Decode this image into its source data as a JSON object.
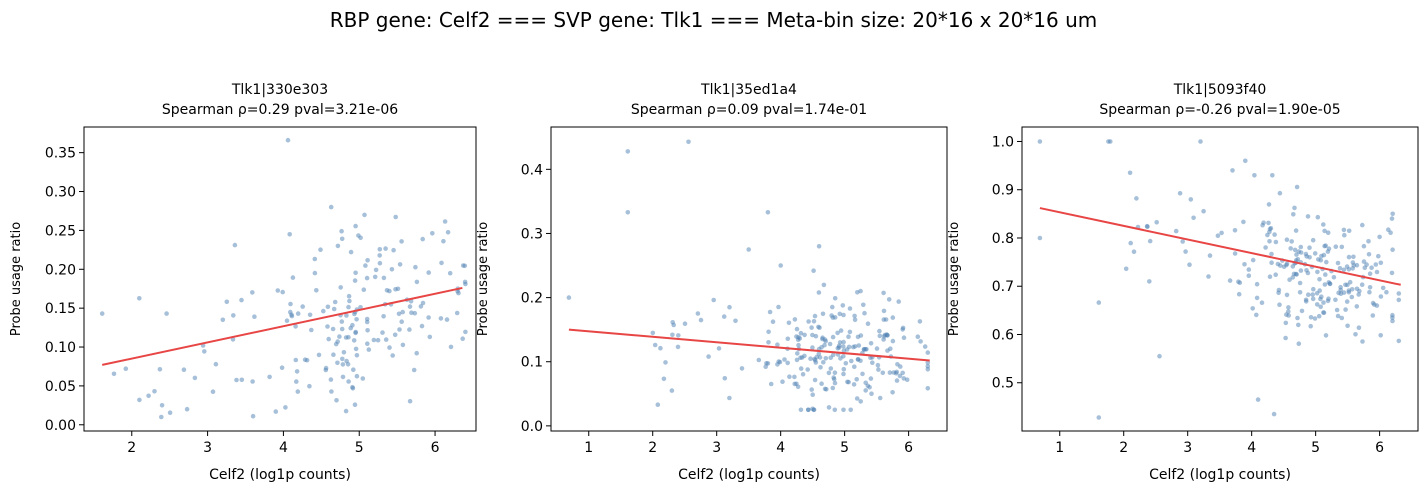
{
  "figure": {
    "suptitle": "RBP gene: Celf2 === SVP gene: Tlk1 === Meta-bin size: 20*16 x 20*16 um"
  },
  "style": {
    "point_color": "#4f81b4",
    "line_color": "#e84545"
  },
  "chart_data": [
    {
      "type": "scatter",
      "title": "Tlk1|330e303",
      "subtitle": "Spearman ρ=0.29 pval=3.21e-06",
      "xlabel": "Celf2 (log1p counts)",
      "ylabel": "Probe usage ratio",
      "xlim": [
        1.37,
        6.54
      ],
      "ylim": [
        -0.008,
        0.383
      ],
      "xticks": [
        2,
        3,
        4,
        5,
        6
      ],
      "xtick_labels": [
        "2",
        "3",
        "4",
        "5",
        "6"
      ],
      "yticks": [
        0,
        0.05,
        0.1,
        0.15,
        0.2,
        0.25,
        0.3,
        0.35
      ],
      "ytick_labels": [
        "0.00",
        "0.05",
        "0.10",
        "0.15",
        "0.20",
        "0.25",
        "0.30",
        "0.35"
      ],
      "fit_line": {
        "x": [
          1.61,
          6.36
        ],
        "y": [
          0.077,
          0.176
        ]
      },
      "seed": 11,
      "n_points": 190,
      "cloud": {
        "x_min": 1.6,
        "x_max": 6.4,
        "x_mode": 5.1,
        "y_center": 0.135,
        "y_sd": 0.055,
        "y_min": 0.01,
        "y_max": 0.28,
        "slope": 0.021,
        "x_ref": 4.9
      },
      "points": [
        [
          4.06,
          0.366
        ],
        [
          1.61,
          0.143
        ],
        [
          2.46,
          0.143
        ],
        [
          2.1,
          0.032
        ],
        [
          2.3,
          0.043
        ],
        [
          2.4,
          0.025
        ],
        [
          2.73,
          0.02
        ],
        [
          3.6,
          0.011
        ],
        [
          3.9,
          0.017
        ],
        [
          6.3,
          0.175
        ],
        [
          6.2,
          0.195
        ],
        [
          4.63,
          0.28
        ],
        [
          5.07,
          0.27
        ]
      ]
    },
    {
      "type": "scatter",
      "title": "Tlk1|35ed1a4",
      "subtitle": "Spearman ρ=0.09 pval=1.74e-01",
      "xlabel": "Celf2 (log1p counts)",
      "ylabel": "Probe usage ratio",
      "xlim": [
        0.41,
        6.6
      ],
      "ylim": [
        -0.008,
        0.466
      ],
      "xticks": [
        1,
        2,
        3,
        4,
        5,
        6
      ],
      "xtick_labels": [
        "1",
        "2",
        "3",
        "4",
        "5",
        "6"
      ],
      "yticks": [
        0,
        0.1,
        0.2,
        0.3,
        0.4
      ],
      "ytick_labels": [
        "0.0",
        "0.1",
        "0.2",
        "0.3",
        "0.4"
      ],
      "fit_line": {
        "x": [
          0.69,
          6.33
        ],
        "y": [
          0.15,
          0.102
        ]
      },
      "seed": 23,
      "n_points": 235,
      "cloud": {
        "x_min": 2.0,
        "x_max": 6.3,
        "x_mode": 5.0,
        "y_center": 0.115,
        "y_sd": 0.04,
        "y_min": 0.025,
        "y_max": 0.25,
        "slope": -0.004,
        "x_ref": 4.9
      },
      "points": [
        [
          0.69,
          0.2
        ],
        [
          1.61,
          0.428
        ],
        [
          1.61,
          0.333
        ],
        [
          2.56,
          0.443
        ],
        [
          2.08,
          0.033
        ],
        [
          2.2,
          0.099
        ],
        [
          2.4,
          0.141
        ],
        [
          3.2,
          0.185
        ],
        [
          3.5,
          0.275
        ],
        [
          3.8,
          0.333
        ],
        [
          4.0,
          0.25
        ],
        [
          4.6,
          0.28
        ],
        [
          2.3,
          0.055
        ]
      ]
    },
    {
      "type": "scatter",
      "title": "Tlk1|5093f40",
      "subtitle": "Spearman ρ=-0.26 pval=1.90e-05",
      "xlabel": "Celf2 (log1p counts)",
      "ylabel": "Probe usage ratio",
      "xlim": [
        0.41,
        6.6
      ],
      "ylim": [
        0.4,
        1.03
      ],
      "xticks": [
        1,
        2,
        3,
        4,
        5,
        6
      ],
      "xtick_labels": [
        "1",
        "2",
        "3",
        "4",
        "5",
        "6"
      ],
      "yticks": [
        0.5,
        0.6,
        0.7,
        0.8,
        0.9,
        1.0
      ],
      "ytick_labels": [
        "0.5",
        "0.6",
        "0.7",
        "0.8",
        "0.9",
        "1.0"
      ],
      "fit_line": {
        "x": [
          0.69,
          6.33
        ],
        "y": [
          0.862,
          0.703
        ]
      },
      "seed": 37,
      "n_points": 235,
      "cloud": {
        "x_min": 2.0,
        "x_max": 6.3,
        "x_mode": 5.0,
        "y_center": 0.73,
        "y_sd": 0.07,
        "y_min": 0.55,
        "y_max": 0.93,
        "slope": -0.03,
        "x_ref": 4.9
      },
      "points": [
        [
          0.69,
          1.0
        ],
        [
          0.69,
          0.8
        ],
        [
          1.61,
          0.428
        ],
        [
          1.61,
          0.666
        ],
        [
          1.79,
          1.0
        ],
        [
          1.76,
          1.0
        ],
        [
          3.2,
          1.0
        ],
        [
          2.1,
          0.935
        ],
        [
          2.56,
          0.555
        ],
        [
          2.4,
          0.71
        ],
        [
          4.1,
          0.465
        ],
        [
          4.35,
          0.435
        ],
        [
          3.9,
          0.96
        ],
        [
          3.7,
          0.94
        ],
        [
          6.2,
          0.64
        ],
        [
          6.2,
          0.635
        ],
        [
          6.3,
          0.685
        ]
      ]
    }
  ]
}
